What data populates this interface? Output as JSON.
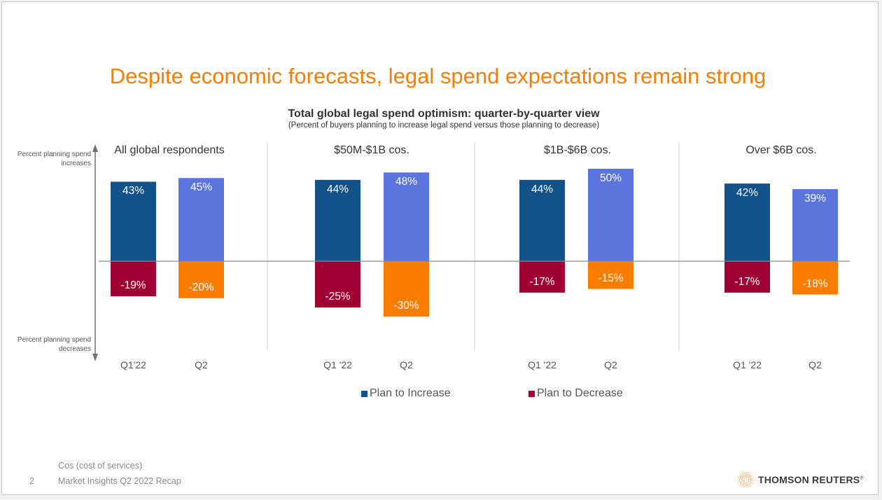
{
  "slide": {
    "title": "Despite economic forecasts, legal spend expectations remain strong",
    "page_number": "2",
    "footnote": "Cos (cost of services)",
    "footer_text": "Market Insights Q2 2022 Recap",
    "logo_text": "THOMSON REUTERS",
    "logo_mark": "®"
  },
  "colors": {
    "title": "#fa7d00",
    "q1_increase": "#11528a",
    "q2_increase": "#5a75dd",
    "q1_decrease": "#9e0034",
    "q2_decrease": "#fa7d00"
  },
  "chart_data": {
    "type": "bar",
    "title": "Total global legal spend optimism: quarter-by-quarter view",
    "subtitle": "(Percent of buyers planning to increase legal spend versus those planning to decrease)",
    "ylabel_top": "Percent planning spend increases",
    "ylabel_bottom": "Percent planning spend decreases",
    "ylim": [
      -35,
      55
    ],
    "units": "%",
    "legend": [
      {
        "label": "Plan to Increase",
        "color": "#11528a"
      },
      {
        "label": "Plan to Decrease",
        "color": "#9e0034"
      }
    ],
    "legend_position": "bottom",
    "groups": [
      {
        "name": "All global respondents",
        "categories": [
          "Q1'22",
          "Q2"
        ],
        "increase": [
          43,
          45
        ],
        "decrease": [
          -19,
          -20
        ]
      },
      {
        "name": "$50M-$1B cos.",
        "categories": [
          "Q1 '22",
          "Q2"
        ],
        "increase": [
          44,
          48
        ],
        "decrease": [
          -25,
          -30
        ]
      },
      {
        "name": "$1B-$6B cos.",
        "categories": [
          "Q1 '22",
          "Q2"
        ],
        "increase": [
          44,
          50
        ],
        "decrease": [
          -17,
          -15
        ]
      },
      {
        "name": "Over $6B cos.",
        "categories": [
          "Q1 '22",
          "Q2"
        ],
        "increase": [
          42,
          39
        ],
        "decrease": [
          -17,
          -18
        ]
      }
    ]
  }
}
